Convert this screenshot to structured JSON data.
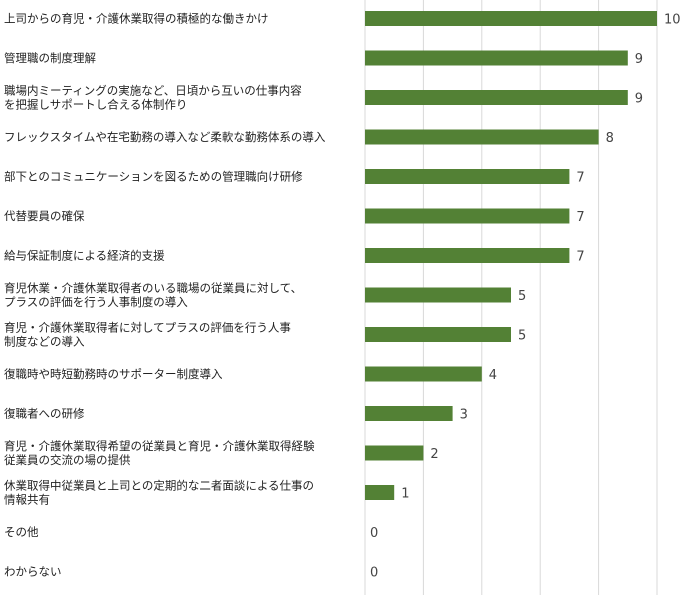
{
  "chart_data": {
    "type": "bar",
    "orientation": "horizontal",
    "title": "",
    "xlabel": "",
    "ylabel": "",
    "xlim": [
      0,
      10
    ],
    "grid": true,
    "bar_color": "#538135",
    "categories": [
      [
        "上司からの育児・介護休業取得の積極的な働きかけ"
      ],
      [
        "管理職の制度理解"
      ],
      [
        "職場内ミーティングの実施など、日頃から互いの仕事内容",
        "を把握しサポートし合える体制作り"
      ],
      [
        "フレックスタイムや在宅勤務の導入など柔軟な勤務体系の導入"
      ],
      [
        "部下とのコミュニケーションを図るための管理職向け研修"
      ],
      [
        "代替要員の確保"
      ],
      [
        "給与保証制度による経済的支援"
      ],
      [
        "育児休業・介護休業取得者のいる職場の従業員に対して、",
        "プラスの評価を行う人事制度の導入"
      ],
      [
        "育児・介護休業取得者に対してプラスの評価を行う人事",
        "制度などの導入"
      ],
      [
        "復職時や時短勤務時のサポーター制度導入"
      ],
      [
        "復職者への研修"
      ],
      [
        "育児・介護休業取得希望の従業員と育児・介護休業取得経験",
        "従業員の交流の場の提供"
      ],
      [
        "休業取得中従業員と上司との定期的な二者面談による仕事の",
        "情報共有"
      ],
      [
        "その他"
      ],
      [
        "わからない"
      ]
    ],
    "values": [
      10,
      9,
      9,
      8,
      7,
      7,
      7,
      5,
      5,
      4,
      3,
      2,
      1,
      0,
      0
    ]
  }
}
